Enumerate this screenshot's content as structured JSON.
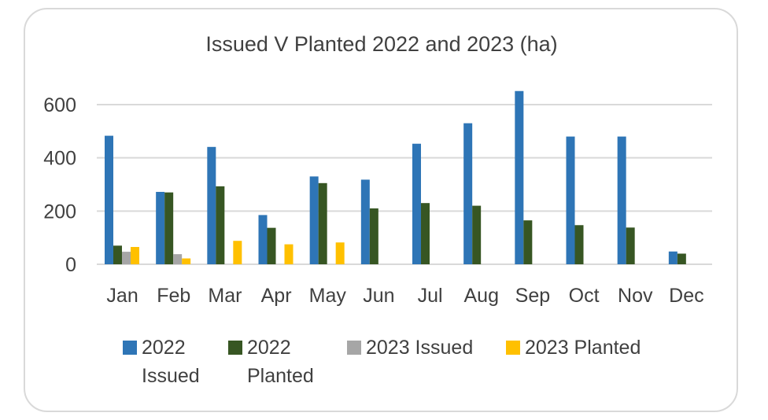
{
  "chart_data": {
    "type": "bar",
    "title": "Issued V Planted 2022 and 2023 (ha)",
    "categories": [
      "Jan",
      "Feb",
      "Mar",
      "Apr",
      "May",
      "Jun",
      "Jul",
      "Aug",
      "Sep",
      "Oct",
      "Nov",
      "Dec"
    ],
    "series": [
      {
        "name": "2022 Issued",
        "color": "#2e75b6",
        "values": [
          483,
          272,
          441,
          185,
          330,
          318,
          453,
          530,
          651,
          480,
          480,
          48
        ]
      },
      {
        "name": "2022 Planted",
        "color": "#375623",
        "values": [
          70,
          270,
          293,
          137,
          305,
          210,
          230,
          220,
          165,
          147,
          138,
          40
        ]
      },
      {
        "name": "2023 Issued",
        "color": "#a6a6a6",
        "values": [
          47,
          38,
          null,
          null,
          null,
          null,
          null,
          null,
          null,
          null,
          null,
          null
        ]
      },
      {
        "name": "2023 Planted",
        "color": "#ffc000",
        "values": [
          65,
          22,
          88,
          75,
          82,
          null,
          null,
          null,
          null,
          null,
          null,
          null
        ]
      }
    ],
    "yticks": [
      0,
      200,
      400,
      600
    ],
    "ylim": [
      0,
      700
    ],
    "grid": true,
    "legend_position": "bottom"
  }
}
